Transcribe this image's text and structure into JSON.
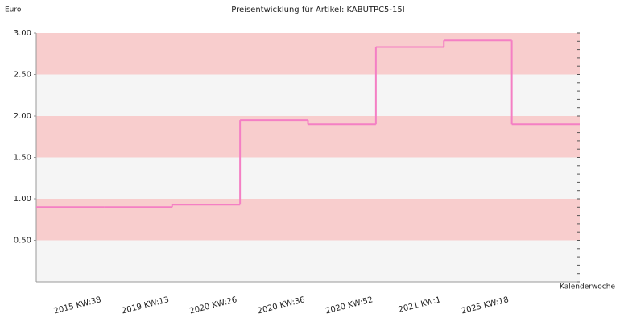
{
  "chart_data": {
    "type": "step",
    "title": "Preisentwicklung für Artikel: KABUTPC5-15I",
    "y_label": "Euro",
    "x_label": "Kalenderwoche",
    "categories": [
      null,
      "2015 KW:38",
      "2019 KW:13",
      "2020 KW:26",
      "2020 KW:36",
      "2020 KW:52",
      "2021 KW:1",
      "2025 KW:18"
    ],
    "values": [
      0.9,
      0.9,
      0.93,
      1.95,
      1.9,
      2.83,
      2.91,
      1.9
    ],
    "color": "#f47fc4",
    "band_colors": [
      "#f5f5f5",
      "#f8cdcd"
    ],
    "ylim": [
      0,
      3
    ],
    "yticks": [
      {
        "value": 0.5,
        "label": "0.50"
      },
      {
        "value": 1,
        "label": "1.00"
      },
      {
        "value": 1.5,
        "label": "1.50"
      },
      {
        "value": 2,
        "label": "2.00"
      },
      {
        "value": 2.5,
        "label": "2.50"
      },
      {
        "value": 3,
        "label": "3.00"
      }
    ]
  }
}
